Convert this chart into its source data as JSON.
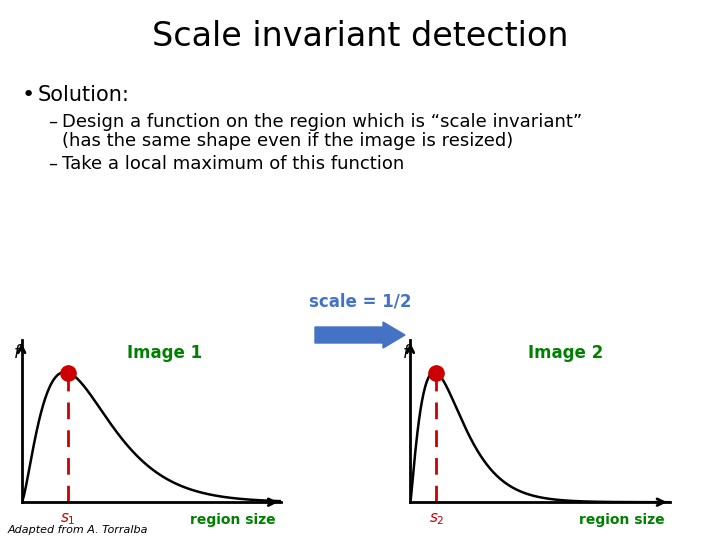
{
  "title": "Scale invariant detection",
  "bullet": "Solution:",
  "dash1_line1": "Design a function on the region which is “scale invariant”",
  "dash1_line2": "(has the same shape even if the image is resized)",
  "dash2": "Take a local maximum of this function",
  "image1_label": "Image 1",
  "image2_label": "Image 2",
  "scale_label": "scale = 1/2",
  "xlabel": "region size",
  "f_label": "f",
  "s1_label": "s₁",
  "s2_label": "s₂",
  "footer": "Adapted from A. Torralba",
  "bg_color": "#ffffff",
  "text_color": "#000000",
  "green_color": "#008000",
  "red_color": "#cc0000",
  "blue_arrow_color": "#4472c4",
  "title_fontsize": 24,
  "body_fontsize": 13,
  "sub_fontsize": 12,
  "graph_label_fontsize": 11,
  "footer_fontsize": 8
}
